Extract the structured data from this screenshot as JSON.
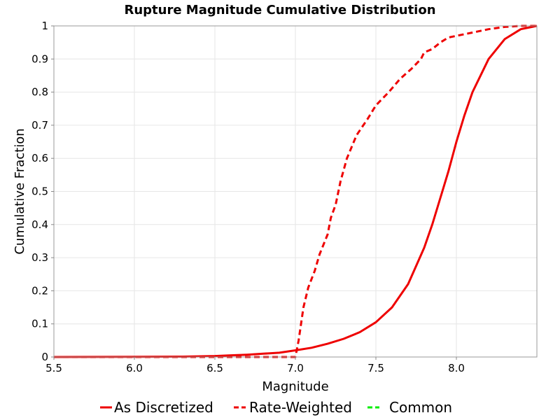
{
  "chart_data": {
    "type": "line",
    "title": "Rupture Magnitude Cumulative Distribution",
    "xlabel": "Magnitude",
    "ylabel": "Cumulative Fraction",
    "xlim": [
      5.5,
      8.5
    ],
    "ylim": [
      0,
      1
    ],
    "x_ticks": [
      "5.5",
      "6.0",
      "6.5",
      "7.0",
      "7.5",
      "8.0"
    ],
    "y_ticks": [
      "0",
      "0.1",
      "0.2",
      "0.3",
      "0.4",
      "0.5",
      "0.6",
      "0.7",
      "0.8",
      "0.9",
      "1"
    ],
    "grid": true,
    "legend_position": "bottom",
    "series": [
      {
        "name": "As Discretized",
        "color": "#ee0000",
        "dash": "solid",
        "points": [
          [
            5.5,
            0.0
          ],
          [
            6.0,
            0.0005
          ],
          [
            6.3,
            0.001
          ],
          [
            6.5,
            0.003
          ],
          [
            6.6,
            0.005
          ],
          [
            6.7,
            0.007
          ],
          [
            6.8,
            0.01
          ],
          [
            6.9,
            0.013
          ],
          [
            7.0,
            0.02
          ],
          [
            7.1,
            0.028
          ],
          [
            7.2,
            0.04
          ],
          [
            7.3,
            0.055
          ],
          [
            7.4,
            0.075
          ],
          [
            7.5,
            0.105
          ],
          [
            7.6,
            0.15
          ],
          [
            7.7,
            0.22
          ],
          [
            7.8,
            0.33
          ],
          [
            7.85,
            0.4
          ],
          [
            7.9,
            0.48
          ],
          [
            7.95,
            0.56
          ],
          [
            8.0,
            0.65
          ],
          [
            8.05,
            0.73
          ],
          [
            8.1,
            0.8
          ],
          [
            8.2,
            0.9
          ],
          [
            8.3,
            0.96
          ],
          [
            8.4,
            0.99
          ],
          [
            8.5,
            1.0
          ]
        ]
      },
      {
        "name": "Rate-Weighted",
        "color": "#ee0000",
        "dash": "dashed",
        "points": [
          [
            5.5,
            0.0
          ],
          [
            6.9,
            0.0
          ],
          [
            7.0,
            0.0
          ],
          [
            7.02,
            0.05
          ],
          [
            7.05,
            0.15
          ],
          [
            7.08,
            0.21
          ],
          [
            7.12,
            0.26
          ],
          [
            7.15,
            0.31
          ],
          [
            7.2,
            0.37
          ],
          [
            7.22,
            0.42
          ],
          [
            7.25,
            0.46
          ],
          [
            7.28,
            0.53
          ],
          [
            7.32,
            0.6
          ],
          [
            7.38,
            0.67
          ],
          [
            7.45,
            0.72
          ],
          [
            7.5,
            0.76
          ],
          [
            7.58,
            0.8
          ],
          [
            7.65,
            0.84
          ],
          [
            7.72,
            0.87
          ],
          [
            7.78,
            0.9
          ],
          [
            7.8,
            0.92
          ],
          [
            7.85,
            0.93
          ],
          [
            7.9,
            0.95
          ],
          [
            7.95,
            0.965
          ],
          [
            8.0,
            0.97
          ],
          [
            8.1,
            0.98
          ],
          [
            8.2,
            0.99
          ],
          [
            8.3,
            0.997
          ],
          [
            8.4,
            1.0
          ],
          [
            8.5,
            1.0
          ]
        ]
      },
      {
        "name": "Common",
        "color": "#00ee00",
        "dash": "dashed",
        "points": []
      }
    ]
  }
}
